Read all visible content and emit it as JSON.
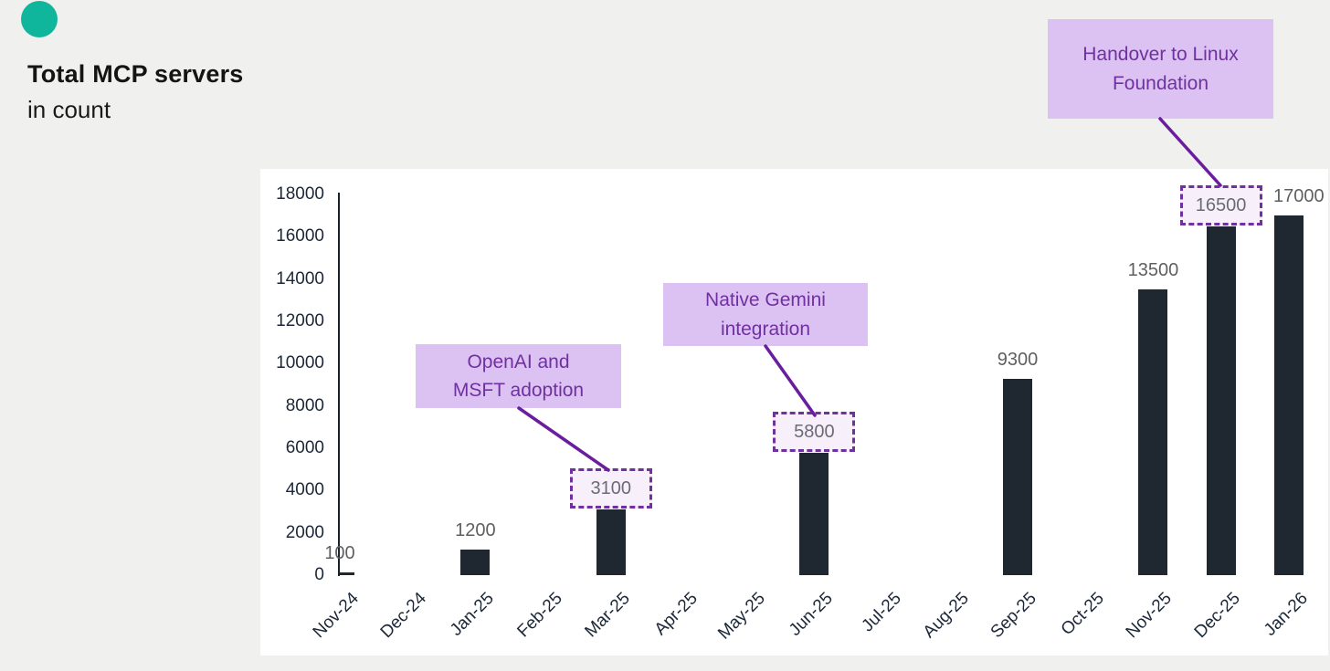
{
  "page": {
    "title": "Total MCP servers",
    "subtitle": "in count",
    "accent_dot_color": "#0fb69c"
  },
  "chart_data": {
    "type": "bar",
    "title": "Total MCP servers",
    "subtitle": "in count",
    "xlabel": "",
    "ylabel": "",
    "ylim": [
      0,
      18000
    ],
    "ytick_step": 2000,
    "grid": false,
    "legend": false,
    "categories": [
      "Nov-24",
      "Dec-24",
      "Jan-25",
      "Feb-25",
      "Mar-25",
      "Apr-25",
      "May-25",
      "Jun-25",
      "Jul-25",
      "Aug-25",
      "Sep-25",
      "Oct-25",
      "Nov-25",
      "Dec-25",
      "Jan-26"
    ],
    "values": [
      100,
      null,
      1200,
      null,
      3100,
      null,
      null,
      5800,
      null,
      null,
      9300,
      null,
      13500,
      16500,
      17000
    ],
    "highlighted_categories": [
      "Mar-25",
      "Jun-25",
      "Dec-25"
    ],
    "annotations": [
      {
        "lines": [
          "OpenAI and",
          "MSFT adoption"
        ],
        "target_category": "Mar-25",
        "target_value": 3100
      },
      {
        "lines": [
          "Native Gemini",
          "integration"
        ],
        "target_category": "Jun-25",
        "target_value": 5800
      },
      {
        "lines": [
          "Handover to Linux",
          "Foundation"
        ],
        "target_category": "Dec-25",
        "target_value": 16500
      }
    ],
    "colors": {
      "bar": "#1f2731",
      "value_label": "#5f5f5f",
      "axis_text": "#1c2838",
      "annotation_bg": "#dcc2f2",
      "annotation_text": "#7030a0",
      "callout_border": "#7030a0",
      "callout_bg": "#f7f0fb",
      "connector": "#6a1d9e"
    }
  }
}
